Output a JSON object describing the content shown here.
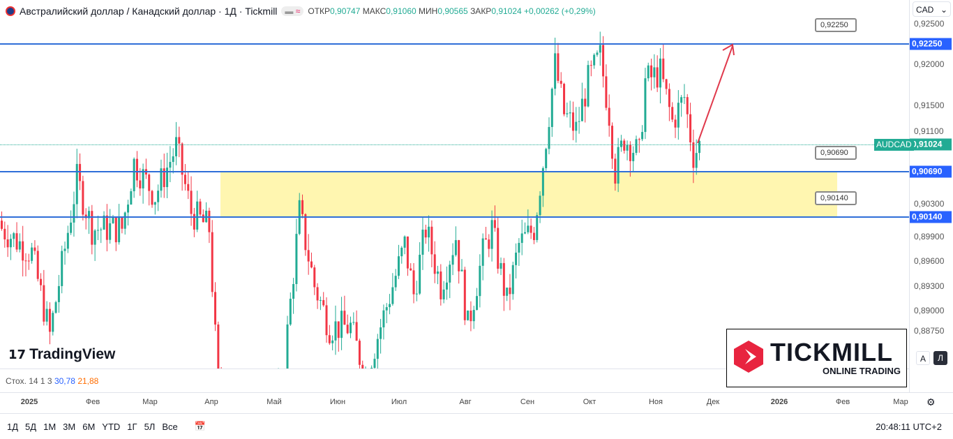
{
  "header": {
    "title": "Австралийский доллар / Канадский доллар · 1Д · Tickmill",
    "open_label": "ОТКР",
    "open": "0,90747",
    "high_label": "МАКС",
    "high": "0,91060",
    "low_label": "МИН",
    "low": "0,90565",
    "close_label": "ЗАКР",
    "close": "0,91024",
    "change": "+0,00262 (+0,29%)",
    "badge": "≈"
  },
  "currency_select": "CAD",
  "price_axis": [
    "0,92500",
    "0,92000",
    "0,91500",
    "0,91100",
    "0,90300",
    "0,89900",
    "0,89600",
    "0,89300",
    "0,89000",
    "0,88750"
  ],
  "levels": [
    {
      "label": "0,92250",
      "value": 0.9225
    },
    {
      "label": "0,90690",
      "value": 0.9069
    },
    {
      "label": "0,90140",
      "value": 0.9014
    }
  ],
  "last_price": {
    "symbol": "AUDCAD",
    "value": "0,91024",
    "price": 0.91024
  },
  "zone": {
    "from": 0.9014,
    "to": 0.9069
  },
  "time_axis": [
    "2025",
    "Фев",
    "Мар",
    "Апр",
    "Май",
    "Июн",
    "Июл",
    "Авг",
    "Сен",
    "Окт",
    "Ноя",
    "Дек",
    "2026",
    "Фев",
    "Мар"
  ],
  "indicator": {
    "name": "Стох. 14 1 3",
    "k": "30,78",
    "d": "21,88"
  },
  "scale_buttons": {
    "auto": "A",
    "log": "Л"
  },
  "toolbar": {
    "ranges": [
      "1Д",
      "5Д",
      "1М",
      "3М",
      "6М",
      "YTD",
      "1Г",
      "5Л",
      "Все"
    ],
    "clock": "20:48:11 UTC+2"
  },
  "logos": {
    "tradingview": "TradingView",
    "tickmill": "TICKMILL",
    "tickmill_sub": "ONLINE TRADING"
  },
  "colors": {
    "up": "#22ab94",
    "down": "#f23645",
    "level": "#2f6fd8",
    "zone": "#fff6b0",
    "arrow": "#e0394c"
  },
  "chart_data": {
    "type": "candlestick",
    "symbol": "AUDCAD",
    "timeframe": "1D",
    "key_closes": [
      [
        0,
        0.9
      ],
      [
        10,
        0.897
      ],
      [
        16,
        0.887
      ],
      [
        25,
        0.906
      ],
      [
        30,
        0.9
      ],
      [
        40,
        0.9
      ],
      [
        44,
        0.908
      ],
      [
        51,
        0.904
      ],
      [
        58,
        0.91
      ],
      [
        63,
        0.902
      ],
      [
        69,
        0.9
      ],
      [
        72,
        0.88
      ],
      [
        80,
        0.879
      ],
      [
        93,
        0.88
      ],
      [
        99,
        0.902
      ],
      [
        104,
        0.893
      ],
      [
        109,
        0.888
      ],
      [
        116,
        0.888
      ],
      [
        121,
        0.882
      ],
      [
        130,
        0.893
      ],
      [
        134,
        0.898
      ],
      [
        137,
        0.892
      ],
      [
        141,
        0.9
      ],
      [
        146,
        0.893
      ],
      [
        151,
        0.899
      ],
      [
        155,
        0.888
      ],
      [
        160,
        0.897
      ],
      [
        163,
        0.9
      ],
      [
        168,
        0.891
      ],
      [
        172,
        0.898
      ],
      [
        177,
        0.9
      ],
      [
        180,
        0.908
      ],
      [
        184,
        0.92
      ],
      [
        187,
        0.914
      ],
      [
        191,
        0.912
      ],
      [
        195,
        0.918
      ],
      [
        199,
        0.921
      ],
      [
        202,
        0.914
      ],
      [
        204,
        0.907
      ],
      [
        207,
        0.911
      ],
      [
        212,
        0.909
      ],
      [
        214,
        0.918
      ],
      [
        219,
        0.919
      ],
      [
        223,
        0.913
      ],
      [
        227,
        0.916
      ],
      [
        230,
        0.909
      ],
      [
        232,
        0.9102
      ]
    ]
  }
}
